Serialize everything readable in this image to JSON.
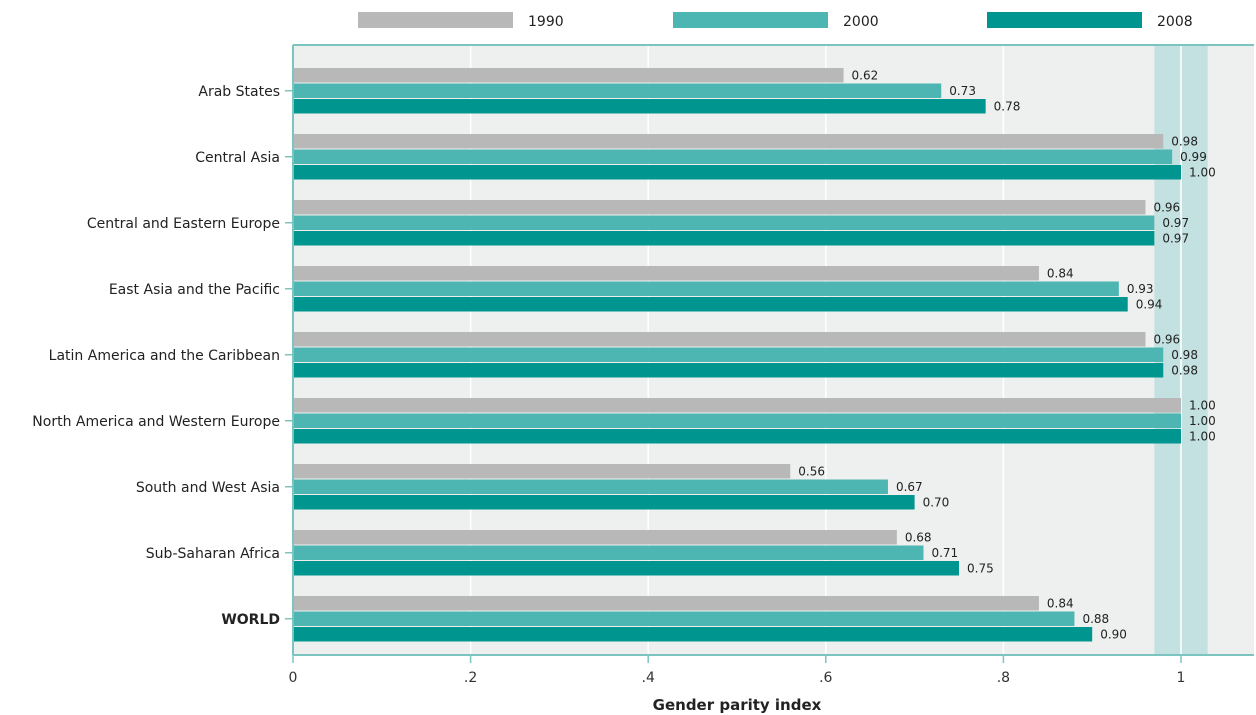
{
  "chart_data": {
    "type": "bar",
    "orientation": "horizontal",
    "categories": [
      "Arab States",
      "Central Asia",
      "Central and Eastern Europe",
      "East Asia and the Pacific",
      "Latin America and the Caribbean",
      "North America and Western Europe",
      "South and West Asia",
      "Sub-Saharan Africa",
      "WORLD"
    ],
    "series": [
      {
        "name": "1990",
        "color": "#b8b8b8",
        "values": [
          0.62,
          0.98,
          0.96,
          0.84,
          0.96,
          1.0,
          0.56,
          0.68,
          0.84
        ]
      },
      {
        "name": "2000",
        "color": "#4db6b2",
        "values": [
          0.73,
          0.99,
          0.97,
          0.93,
          0.98,
          1.0,
          0.67,
          0.71,
          0.88
        ]
      },
      {
        "name": "2008",
        "color": "#00968f",
        "values": [
          0.78,
          1.0,
          0.97,
          0.94,
          0.98,
          1.0,
          0.7,
          0.75,
          0.9
        ]
      }
    ],
    "value_labels": [
      [
        "0.62",
        "0.98",
        "0.96",
        "0.84",
        "0.96",
        "1.00",
        "0.56",
        "0.68",
        "0.84"
      ],
      [
        "0.73",
        "0.99",
        "0.97",
        "0.93",
        "0.98",
        "1.00",
        "0.67",
        "0.71",
        "0.88"
      ],
      [
        "0.78",
        "1.00",
        "0.97",
        "0.94",
        "0.98",
        "1.00",
        "0.70",
        "0.75",
        "0.90"
      ]
    ],
    "bold_categories": [
      "WORLD"
    ],
    "xlabel": "Gender parity index",
    "ylabel": "",
    "title": "",
    "xlim": [
      0,
      1.08
    ],
    "xticks": [
      0,
      0.2,
      0.4,
      0.6,
      0.8,
      1
    ],
    "xtick_labels": [
      "0",
      ".2",
      ".4",
      ".6",
      ".8",
      "1"
    ],
    "parity_band": [
      0.97,
      1.03
    ],
    "legend_position": "top",
    "grid": true,
    "colors": {
      "plot_background": "#eef0ef",
      "frame": "#7cc4c0",
      "gridline": "#ffffff",
      "parity_band": "#c2e1e0"
    }
  }
}
